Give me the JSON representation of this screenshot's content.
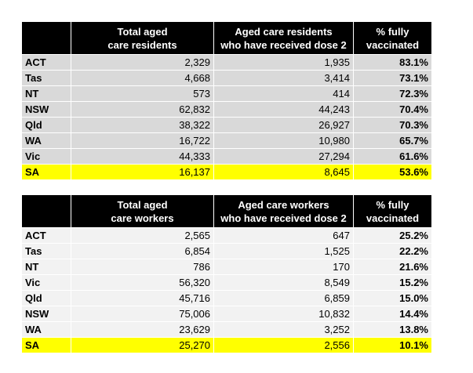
{
  "tables": [
    {
      "headers": [
        [
          "Total aged",
          "care residents"
        ],
        [
          "Aged care residents",
          "who have received dose 2"
        ],
        [
          "% fully",
          "vaccinated"
        ]
      ],
      "rows": [
        [
          "ACT",
          "2,329",
          "1,935",
          "83.1%"
        ],
        [
          "Tas",
          "4,668",
          "3,414",
          "73.1%"
        ],
        [
          "NT",
          "573",
          "414",
          "72.3%"
        ],
        [
          "NSW",
          "62,832",
          "44,243",
          "70.4%"
        ],
        [
          "Qld",
          "38,322",
          "26,927",
          "70.3%"
        ],
        [
          "WA",
          "16,722",
          "10,980",
          "65.7%"
        ],
        [
          "Vic",
          "44,333",
          "27,294",
          "61.6%"
        ],
        [
          "SA",
          "16,137",
          "8,645",
          "53.6%"
        ]
      ]
    },
    {
      "headers": [
        [
          "Total aged",
          "care workers"
        ],
        [
          "Aged care workers",
          "who have received dose 2"
        ],
        [
          "% fully",
          "vaccinated"
        ]
      ],
      "rows": [
        [
          "ACT",
          "2,565",
          "647",
          "25.2%"
        ],
        [
          "Tas",
          "6,854",
          "1,525",
          "22.2%"
        ],
        [
          "NT",
          "786",
          "170",
          "21.6%"
        ],
        [
          "Vic",
          "56,320",
          "8,549",
          "15.2%"
        ],
        [
          "Qld",
          "45,716",
          "6,859",
          "15.0%"
        ],
        [
          "NSW",
          "75,006",
          "10,832",
          "14.4%"
        ],
        [
          "WA",
          "23,629",
          "3,252",
          "13.8%"
        ],
        [
          "SA",
          "25,270",
          "2,556",
          "10.1%"
        ]
      ]
    }
  ]
}
